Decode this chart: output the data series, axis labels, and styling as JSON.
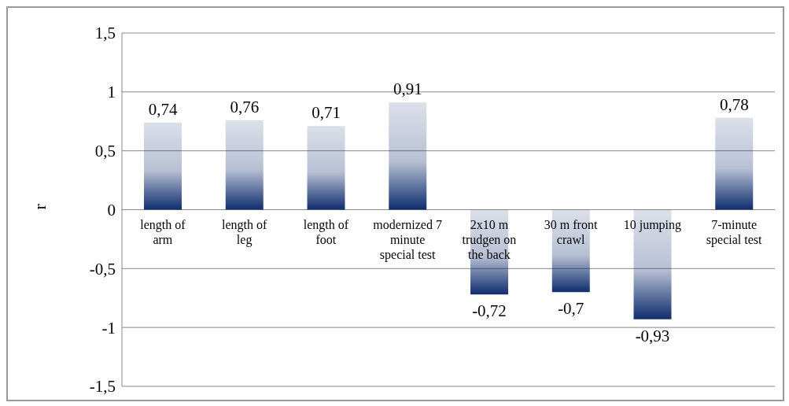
{
  "chart_data": {
    "type": "bar",
    "ylabel": "r",
    "categories": [
      "length of arm",
      "length of leg",
      "length of foot",
      "modernized 7 minute special test",
      "2x10 m trudgen on the back",
      "30 m front crawl",
      "10 jumping",
      "7-minute special test"
    ],
    "values": [
      0.74,
      0.76,
      0.71,
      0.91,
      -0.72,
      -0.7,
      -0.93,
      0.78
    ],
    "value_labels": [
      "0,74",
      "0,76",
      "0,71",
      "0,91",
      "-0,72",
      "-0,7",
      "-0,93",
      "0,78"
    ],
    "color": "#0f2d6e",
    "ylim": [
      -1.5,
      1.5
    ],
    "yticks": [
      {
        "value": -1.5,
        "label": "-1,5"
      },
      -1,
      {
        "value": -0.5,
        "label": "-0,5"
      },
      0,
      {
        "value": 0.5,
        "label": "0,5"
      },
      1,
      {
        "value": 1.5,
        "label": "1,5"
      }
    ],
    "grid": "y"
  }
}
